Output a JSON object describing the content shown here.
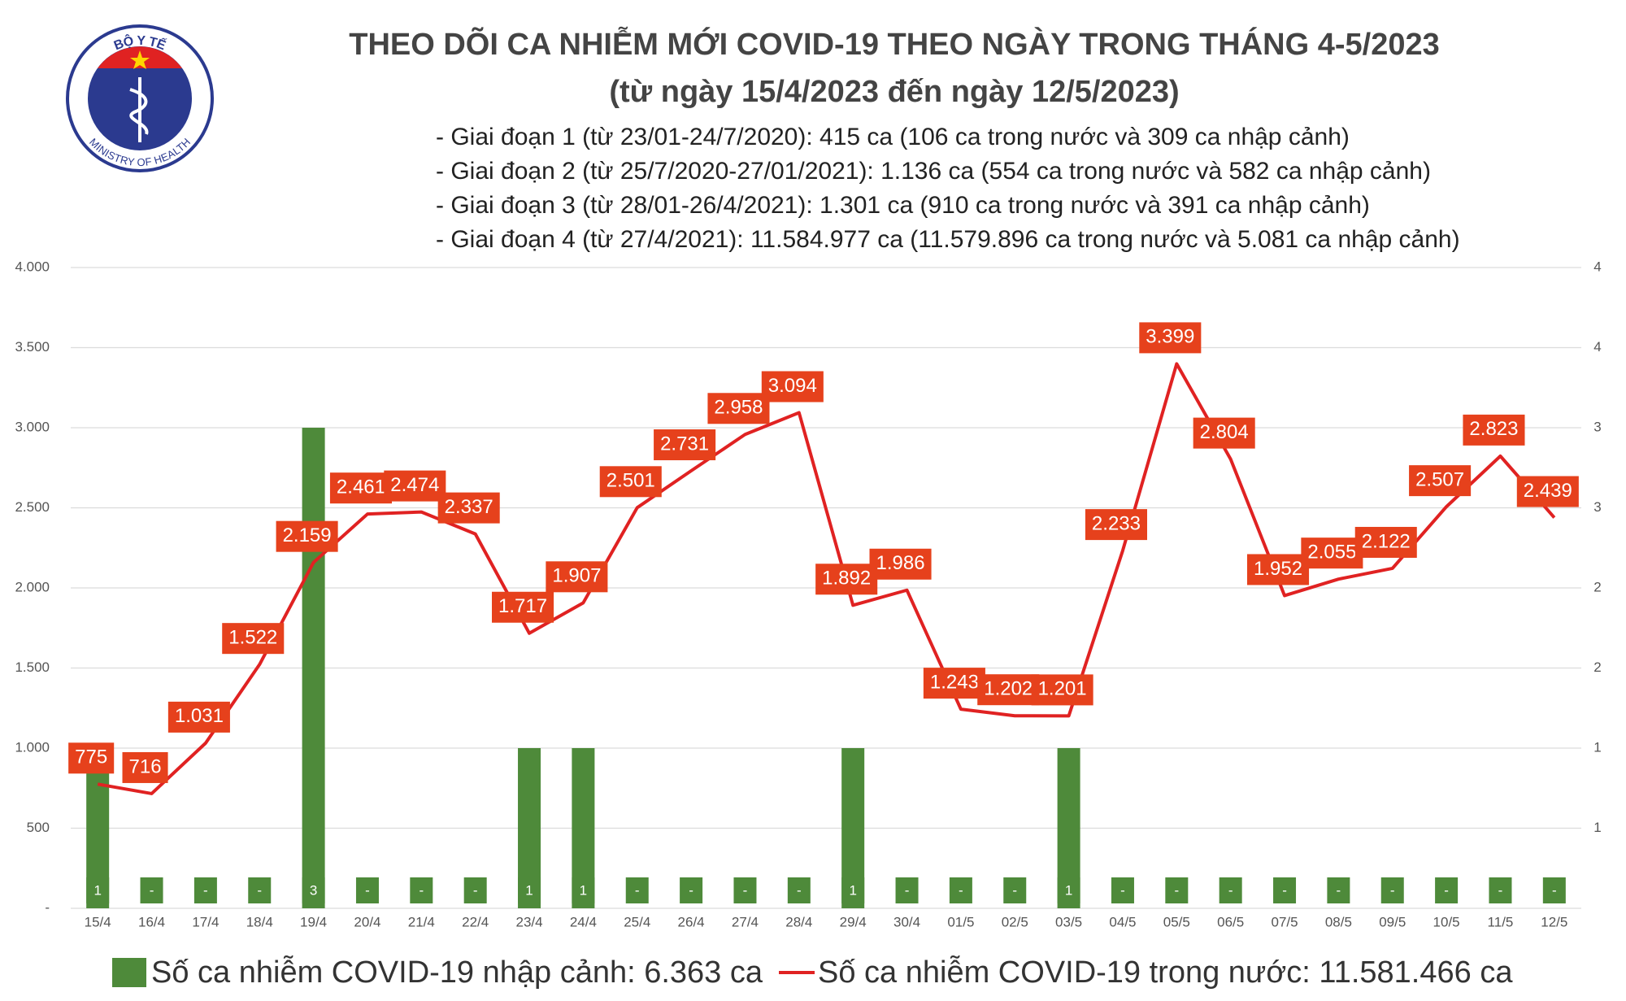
{
  "logo": {
    "top_text": "BỘ Y TẾ",
    "bottom_text": "MINISTRY OF HEALTH"
  },
  "chart_data": {
    "type": "combo",
    "title": "THEO DÕI CA NHIỄM MỚI COVID-19 THEO NGÀY TRONG THÁNG 4-5/2023",
    "subtitle": "(từ ngày 15/4/2023 đến ngày 12/5/2023)",
    "annotations": [
      "- Giai đoạn 1 (từ 23/01-24/7/2020): 415 ca (106 ca trong nước và 309 ca nhập cảnh)",
      "- Giai đoạn 2 (từ 25/7/2020-27/01/2021): 1.136 ca (554 ca trong nước và 582 ca nhập cảnh)",
      "- Giai đoạn 3 (từ 28/01-26/4/2021): 1.301 ca (910 ca trong nước và 391 ca nhập cảnh)",
      "- Giai đoạn 4 (từ 27/4/2021): 11.584.977 ca (11.579.896 ca trong nước và 5.081 ca nhập cảnh)"
    ],
    "categories": [
      "15/4",
      "16/4",
      "17/4",
      "18/4",
      "19/4",
      "20/4",
      "21/4",
      "22/4",
      "23/4",
      "24/4",
      "25/4",
      "26/4",
      "27/4",
      "28/4",
      "29/4",
      "30/4",
      "01/5",
      "02/5",
      "03/5",
      "04/5",
      "05/5",
      "06/5",
      "07/5",
      "08/5",
      "09/5",
      "10/5",
      "11/5",
      "12/5"
    ],
    "series": [
      {
        "name": "Số ca nhiễm COVID-19 nhập cảnh: 6.363 ca",
        "type": "bar",
        "axis": "y2",
        "color": "#4e8a3a",
        "values": [
          1,
          0,
          0,
          0,
          3,
          0,
          0,
          0,
          1,
          1,
          0,
          0,
          0,
          0,
          1,
          0,
          0,
          0,
          1,
          0,
          0,
          0,
          0,
          0,
          0,
          0,
          0,
          0
        ],
        "value_labels": [
          "1",
          "-",
          "-",
          "-",
          "3",
          "-",
          "-",
          "-",
          "1",
          "1",
          "-",
          "-",
          "-",
          "-",
          "1",
          "-",
          "-",
          "-",
          "1",
          "-",
          "-",
          "-",
          "-",
          "-",
          "-",
          "-",
          "-",
          "-"
        ]
      },
      {
        "name": "Số ca nhiễm COVID-19 trong nước: 11.581.466 ca",
        "type": "line",
        "color": "#e02222",
        "label_color": "#e6411c",
        "values": [
          775,
          716,
          1031,
          1522,
          2159,
          2461,
          2474,
          2337,
          1717,
          1907,
          2501,
          2731,
          2958,
          3094,
          1892,
          1986,
          1243,
          1202,
          1201,
          2233,
          3399,
          2804,
          1952,
          2055,
          2122,
          2507,
          2823,
          2439
        ],
        "value_labels": [
          "775",
          "716",
          "1.031",
          "1.522",
          "2.159",
          "2.461",
          "2.474",
          "2.337",
          "1.717",
          "1.907",
          "2.501",
          "2.731",
          "2.958",
          "3.094",
          "1.892",
          "1.986",
          "1.243",
          "1.202",
          "1.201",
          "2.233",
          "3.399",
          "2.804",
          "1.952",
          "2.055",
          "2.122",
          "2.507",
          "2.823",
          "2.439"
        ]
      }
    ],
    "ylim": [
      0,
      4000
    ],
    "yticks": [
      {
        "value": 0,
        "label": "-"
      },
      500,
      {
        "value": 1000,
        "label": "1.000"
      },
      {
        "value": 1500,
        "label": "1.500"
      },
      {
        "value": 2000,
        "label": "2.000"
      },
      {
        "value": 2500,
        "label": "2.500"
      },
      {
        "value": 3000,
        "label": "3.000"
      },
      {
        "value": 3500,
        "label": "3.500"
      },
      {
        "value": 4000,
        "label": "4.000"
      }
    ],
    "y2lim": [
      0,
      4
    ],
    "y2ticks": [
      {
        "value": 0.5,
        "label": "1"
      },
      1,
      {
        "value": 1.5,
        "label": "2"
      },
      2,
      {
        "value": 2.5,
        "label": "3"
      },
      3,
      {
        "value": 3.5,
        "label": "4"
      },
      4
    ],
    "grid": true
  }
}
